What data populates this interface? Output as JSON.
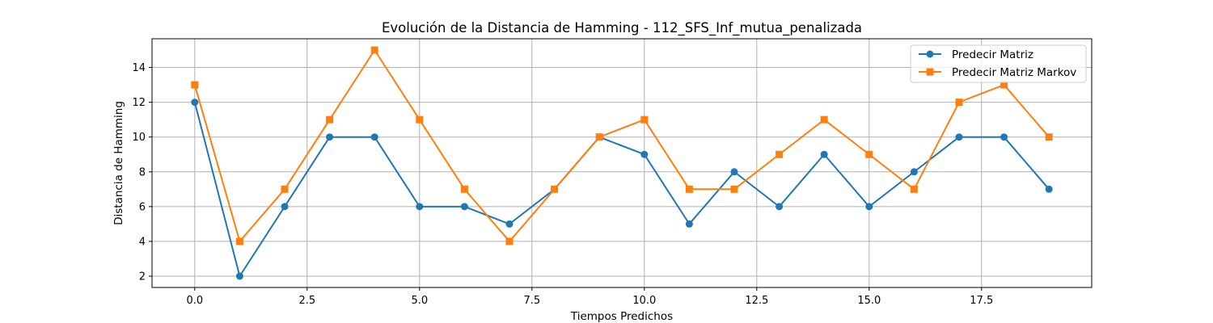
{
  "chart_data": {
    "type": "line",
    "title": "Evolución de la Distancia de Hamming - 112_SFS_Inf_mutua_penalizada",
    "xlabel": "Tiempos Predichos",
    "ylabel": "Distancia de Hamming",
    "xlim": [
      -0.95,
      19.95
    ],
    "ylim": [
      1.35,
      15.65
    ],
    "xticks": [
      0.0,
      2.5,
      5.0,
      7.5,
      10.0,
      12.5,
      15.0,
      17.5
    ],
    "xtick_labels": [
      "0.0",
      "2.5",
      "5.0",
      "7.5",
      "10.0",
      "12.5",
      "15.0",
      "17.5"
    ],
    "yticks": [
      2,
      4,
      6,
      8,
      10,
      12,
      14
    ],
    "ytick_labels": [
      "2",
      "4",
      "6",
      "8",
      "10",
      "12",
      "14"
    ],
    "grid": true,
    "legend_position": "upper right",
    "x": [
      0,
      1,
      2,
      3,
      4,
      5,
      6,
      7,
      8,
      9,
      10,
      11,
      12,
      13,
      14,
      15,
      16,
      17,
      18,
      19
    ],
    "series": [
      {
        "name": "Predecir Matriz",
        "color": "#1f77b4",
        "marker": "circle",
        "values": [
          12,
          2,
          6,
          10,
          10,
          6,
          6,
          5,
          7,
          10,
          9,
          5,
          8,
          6,
          9,
          6,
          8,
          10,
          10,
          7
        ]
      },
      {
        "name": "Predecir Matriz Markov",
        "color": "#ff7f0e",
        "marker": "square",
        "values": [
          13,
          4,
          7,
          11,
          15,
          11,
          7,
          4,
          7,
          10,
          11,
          7,
          7,
          9,
          11,
          9,
          7,
          12,
          13,
          10
        ]
      }
    ]
  }
}
